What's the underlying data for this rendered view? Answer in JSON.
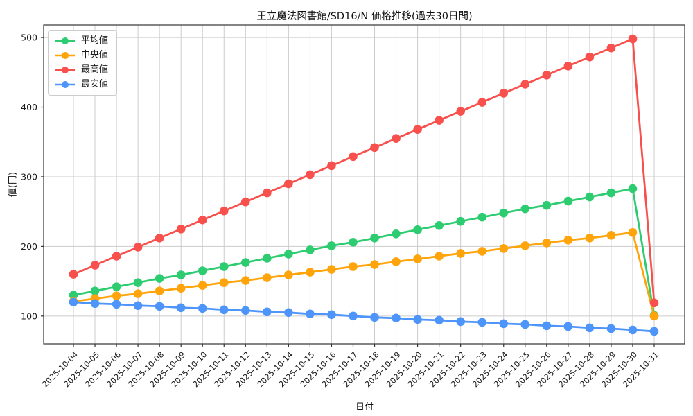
{
  "chart_data": {
    "type": "line",
    "title": "王立魔法図書館/SD16/N 価格推移(過去30日間)",
    "xlabel": "日付",
    "ylabel": "値(円)",
    "categories": [
      "2025-10-04",
      "2025-10-05",
      "2025-10-06",
      "2025-10-07",
      "2025-10-08",
      "2025-10-09",
      "2025-10-10",
      "2025-10-11",
      "2025-10-12",
      "2025-10-13",
      "2025-10-14",
      "2025-10-15",
      "2025-10-16",
      "2025-10-17",
      "2025-10-18",
      "2025-10-19",
      "2025-10-20",
      "2025-10-21",
      "2025-10-22",
      "2025-10-23",
      "2025-10-24",
      "2025-10-25",
      "2025-10-26",
      "2025-10-27",
      "2025-10-28",
      "2025-10-29",
      "2025-10-30",
      "2025-10-31"
    ],
    "series": [
      {
        "key": "average",
        "name": "平均値",
        "color": "#2ecc71",
        "values": [
          130,
          136,
          142,
          148,
          154,
          159,
          165,
          171,
          177,
          183,
          189,
          195,
          201,
          206,
          212,
          218,
          224,
          230,
          236,
          242,
          248,
          254,
          259,
          265,
          271,
          277,
          283,
          101
        ]
      },
      {
        "key": "median",
        "name": "中央値",
        "color": "#ffa40a",
        "values": [
          121,
          125,
          129,
          132,
          136,
          140,
          144,
          148,
          151,
          155,
          159,
          163,
          167,
          171,
          174,
          178,
          182,
          186,
          190,
          193,
          197,
          201,
          205,
          209,
          212,
          216,
          220,
          100
        ]
      },
      {
        "key": "highest",
        "name": "最高値",
        "color": "#f7504d",
        "values": [
          160,
          173,
          186,
          199,
          212,
          225,
          238,
          251,
          264,
          277,
          290,
          303,
          316,
          329,
          342,
          355,
          368,
          381,
          394,
          407,
          420,
          433,
          446,
          459,
          472,
          485,
          498,
          119
        ]
      },
      {
        "key": "lowest",
        "name": "最安値",
        "color": "#4d94fb",
        "values": [
          120,
          118,
          117,
          115,
          114,
          112,
          111,
          109,
          108,
          106,
          105,
          103,
          102,
          100,
          98,
          97,
          95,
          94,
          92,
          91,
          89,
          88,
          86,
          85,
          83,
          82,
          80,
          78
        ]
      }
    ],
    "yticks": [
      100,
      200,
      300,
      400,
      500
    ],
    "ylim": [
      60,
      518
    ],
    "grid": true,
    "grid_color": "#cccccc",
    "spine_color": "#333333",
    "tick_label_color": "#1a1a1a",
    "background": "#ffffff",
    "legend_position": "upper-left",
    "legend_labels": [
      "平均値",
      "中央値",
      "最高値",
      "最安値"
    ]
  }
}
